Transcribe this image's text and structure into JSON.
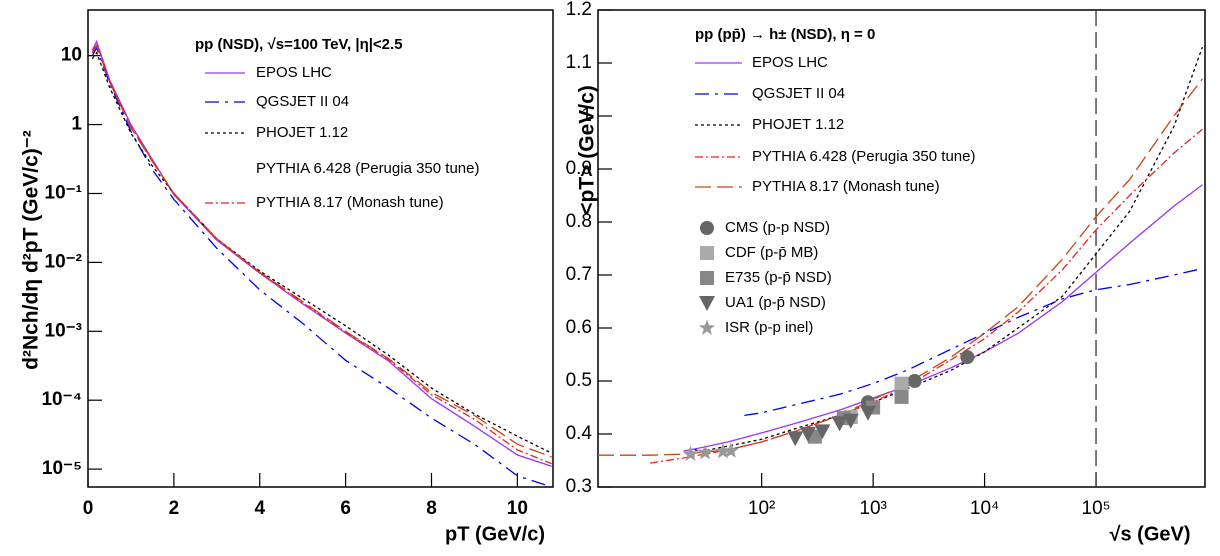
{
  "chart_data": [
    {
      "type": "line",
      "legend_title": "pp (NSD), √s=100 TeV, |η|<2.5",
      "xlabel": "pT (GeV/c)",
      "ylabel": "d²Nch/dη d²pT (GeV/c)⁻²",
      "xlim": [
        0,
        10.83
      ],
      "ylim": [
        5.5e-06,
        46
      ],
      "ylog": true,
      "xticks": [
        0,
        2,
        4,
        6,
        8,
        10
      ],
      "yticks": [
        {
          "value": 1e-05,
          "label": "10⁻⁵"
        },
        {
          "value": 0.0001,
          "label": "10⁻⁴"
        },
        {
          "value": 0.001,
          "label": "10⁻³"
        },
        {
          "value": 0.01,
          "label": "10⁻²"
        },
        {
          "value": 0.1,
          "label": "10⁻¹"
        },
        1,
        10
      ],
      "x": [
        0.1,
        0.2,
        0.5,
        1,
        1.5,
        2,
        3,
        4,
        5,
        6,
        7,
        8,
        9,
        10,
        10.8
      ],
      "series": [
        {
          "name": "EPOS LHC",
          "color": "#9933ff",
          "values": [
            12,
            16,
            4.5,
            1,
            0.31,
            0.096,
            0.021,
            0.007,
            0.0025,
            0.00094,
            0.00037,
            0.000105,
            4.2e-05,
            1.6e-05,
            1.1e-05
          ]
        },
        {
          "name": "QGSJET II 04",
          "color": "#0000ee",
          "dash": "14,6,3,6",
          "values": [
            10,
            13,
            4,
            0.8,
            0.22,
            0.082,
            0.016,
            0.004,
            0.0013,
            0.00038,
            0.00015,
            5.5e-05,
            2.3e-05,
            8e-06,
            5.5e-06
          ]
        },
        {
          "name": "PHOJET 1.12",
          "color": "#000000",
          "dash": "3,3",
          "values": [
            9,
            11,
            3.5,
            0.75,
            0.25,
            0.1,
            0.022,
            0.0075,
            0.003,
            0.0012,
            0.00045,
            0.00015,
            6.3e-05,
            3e-05,
            1.7e-05
          ]
        },
        {
          "name": "PYTHIA 6.428 (Perugia 350 tune)",
          "color": "#cc4411",
          "dash": "16,6",
          "legend_line": false,
          "values": [
            11,
            14,
            4.2,
            0.9,
            0.29,
            0.1,
            0.022,
            0.0072,
            0.0027,
            0.001,
            0.0004,
            0.00013,
            6e-05,
            2.3e-05,
            1.5e-05
          ]
        },
        {
          "name": "PYTHIA 8.17 (Monash tune)",
          "color": "#ee2222",
          "dash": "8,3,2,3",
          "values": [
            11,
            15,
            4.3,
            0.95,
            0.3,
            0.1,
            0.022,
            0.0071,
            0.0026,
            0.00098,
            0.00039,
            0.00012,
            5.3e-05,
            1.9e-05,
            1.2e-05
          ]
        }
      ]
    },
    {
      "type": "line",
      "legend_title": "pp (pp̄) → h± (NSD), η = 0",
      "xlabel": "√s (GeV)",
      "ylabel": "<pT> (GeV/c)",
      "xlim": [
        3.4,
        950000
      ],
      "xlog": true,
      "ylim": [
        0.3,
        1.2
      ],
      "xticks": [
        {
          "value": 100,
          "label": "10²"
        },
        {
          "value": 1000,
          "label": "10³"
        },
        {
          "value": 10000,
          "label": "10⁴"
        },
        {
          "value": 100000,
          "label": "10⁵"
        }
      ],
      "yticks": [
        0.3,
        0.4,
        0.5,
        0.6,
        0.7,
        0.8,
        0.9,
        1,
        1.1,
        1.2
      ],
      "vline": 100000,
      "series": [
        {
          "name": "EPOS LHC",
          "color": "#9933ff",
          "x": [
            20,
            30,
            50,
            100,
            200,
            500,
            1000,
            2000,
            5000,
            10000,
            20000,
            50000,
            100000,
            200000,
            500000,
            900000
          ],
          "values": [
            0.368,
            0.375,
            0.385,
            0.402,
            0.42,
            0.445,
            0.468,
            0.49,
            0.525,
            0.555,
            0.59,
            0.65,
            0.705,
            0.76,
            0.83,
            0.87
          ]
        },
        {
          "name": "QGSJET II 04",
          "color": "#0000ee",
          "dash": "14,6,3,6",
          "x": [
            70,
            100,
            200,
            500,
            1000,
            2000,
            5000,
            10000,
            20000,
            50000,
            100000,
            200000,
            500000,
            900000
          ],
          "values": [
            0.435,
            0.44,
            0.455,
            0.475,
            0.495,
            0.52,
            0.56,
            0.59,
            0.62,
            0.655,
            0.672,
            0.682,
            0.7,
            0.712
          ]
        },
        {
          "name": "PHOJET 1.12",
          "color": "#000000",
          "dash": "3,3",
          "x": [
            25,
            30,
            100,
            200,
            500,
            1000,
            2000,
            5000,
            10000,
            20000,
            50000,
            100000,
            200000,
            500000,
            900000
          ],
          "values": [
            0.37,
            0.368,
            0.39,
            0.41,
            0.435,
            0.46,
            0.485,
            0.52,
            0.555,
            0.6,
            0.66,
            0.74,
            0.82,
            0.98,
            1.13
          ]
        },
        {
          "name": "PYTHIA 6.428 (Perugia 350 tune)",
          "color": "#ee2222",
          "dash": "8,3,2,3",
          "x": [
            10,
            20,
            50,
            100,
            200,
            500,
            1000,
            2000,
            5000,
            10000,
            20000,
            50000,
            100000,
            200000,
            500000,
            900000
          ],
          "values": [
            0.345,
            0.355,
            0.37,
            0.385,
            0.405,
            0.435,
            0.46,
            0.49,
            0.54,
            0.58,
            0.63,
            0.71,
            0.785,
            0.85,
            0.93,
            0.975
          ]
        },
        {
          "name": "PYTHIA 8.17 (Monash tune)",
          "color": "#cc4411",
          "dash": "16,6",
          "x": [
            3.4,
            10,
            20,
            50,
            100,
            200,
            500,
            1000,
            2000,
            5000,
            10000,
            20000,
            50000,
            100000,
            200000,
            500000,
            900000
          ],
          "values": [
            0.36,
            0.36,
            0.362,
            0.37,
            0.385,
            0.405,
            0.435,
            0.465,
            0.495,
            0.545,
            0.59,
            0.64,
            0.73,
            0.81,
            0.88,
            1.0,
            1.07
          ]
        },
        {
          "name": "CMS (p-p NSD)",
          "color": "#666666",
          "marker": "circle",
          "x": [
            900,
            2360,
            7000
          ],
          "values": [
            0.46,
            0.5,
            0.545
          ]
        },
        {
          "name": "CDF (p-p̄ MB)",
          "color": "#aaaaaa",
          "marker": "square",
          "x": [
            630,
            1800
          ],
          "values": [
            0.432,
            0.495
          ]
        },
        {
          "name": "E735 (p-p̄ NSD)",
          "color": "#888888",
          "marker": "square",
          "x": [
            300,
            546,
            1000,
            1800
          ],
          "values": [
            0.395,
            0.43,
            0.45,
            0.47
          ]
        },
        {
          "name": "UA1 (p-p̄ NSD)",
          "color": "#666666",
          "marker": "triangle",
          "x": [
            200,
            260,
            350,
            500,
            630,
            900
          ],
          "values": [
            0.392,
            0.4,
            0.405,
            0.42,
            0.425,
            0.44
          ]
        },
        {
          "name": "ISR (p-p inel)",
          "color": "#999999",
          "marker": "star",
          "x": [
            23,
            31,
            45,
            53
          ],
          "values": [
            0.362,
            0.365,
            0.367,
            0.368
          ]
        }
      ]
    }
  ]
}
